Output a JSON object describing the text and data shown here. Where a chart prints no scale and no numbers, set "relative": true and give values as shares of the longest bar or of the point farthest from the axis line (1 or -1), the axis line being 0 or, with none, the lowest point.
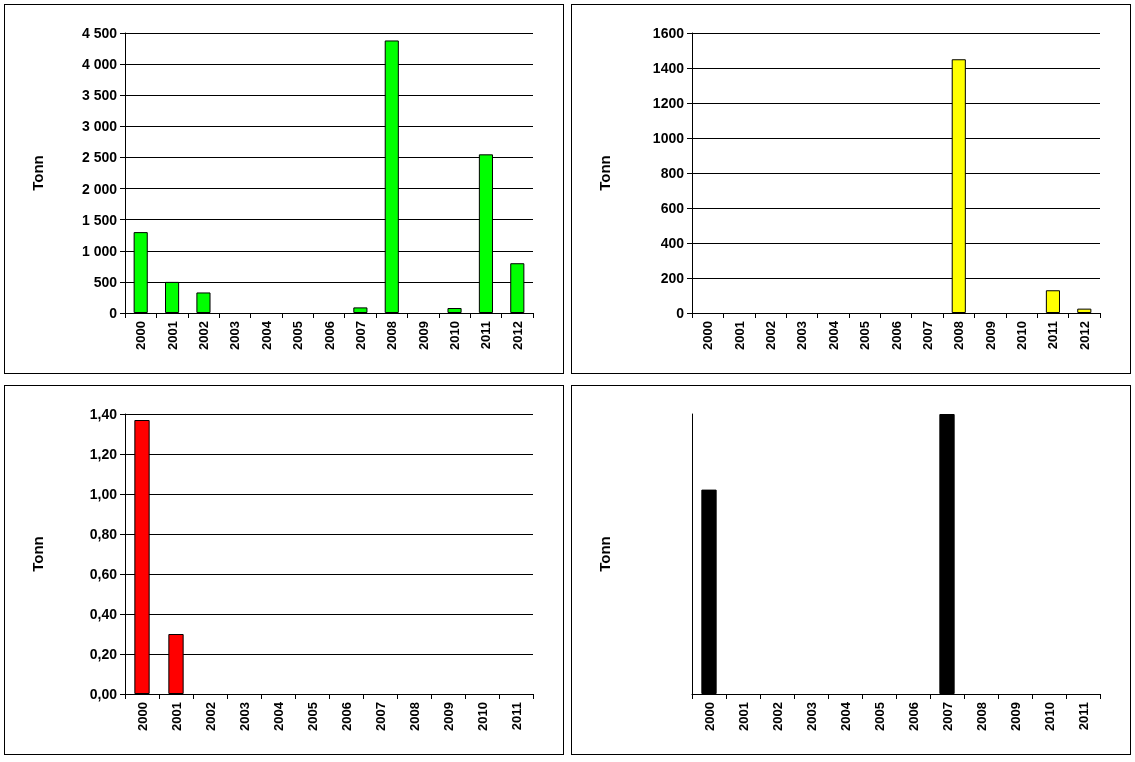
{
  "chart_data": [
    {
      "type": "bar",
      "ylabel": "Tonn",
      "categories": [
        "2000",
        "2001",
        "2002",
        "2003",
        "2004",
        "2005",
        "2006",
        "2007",
        "2008",
        "2009",
        "2010",
        "2011",
        "2012"
      ],
      "values": [
        1300,
        500,
        330,
        0,
        0,
        0,
        0,
        90,
        4380,
        0,
        80,
        2550,
        800
      ],
      "color": "#00ff00",
      "ylim": [
        0,
        4500
      ],
      "yticks": [
        {
          "value": 0,
          "label": "0"
        },
        {
          "value": 500,
          "label": "500"
        },
        {
          "value": 1000,
          "label": "1 000"
        },
        {
          "value": 1500,
          "label": "1 500"
        },
        {
          "value": 2000,
          "label": "2 000"
        },
        {
          "value": 2500,
          "label": "2 500"
        },
        {
          "value": 3000,
          "label": "3 000"
        },
        {
          "value": 3500,
          "label": "3 500"
        },
        {
          "value": 4000,
          "label": "4 000"
        },
        {
          "value": 4500,
          "label": "4 500"
        }
      ],
      "grid": "y"
    },
    {
      "type": "bar",
      "ylabel": "Tonn",
      "categories": [
        "2000",
        "2001",
        "2002",
        "2003",
        "2004",
        "2005",
        "2006",
        "2007",
        "2008",
        "2009",
        "2010",
        "2011",
        "2012"
      ],
      "values": [
        0,
        0,
        0,
        0,
        0,
        0,
        0,
        0,
        1450,
        0,
        0,
        130,
        25
      ],
      "color": "#ffff00",
      "ylim": [
        0,
        1600
      ],
      "yticks": [
        0,
        200,
        400,
        600,
        800,
        1000,
        1200,
        1400,
        1600
      ],
      "grid": "y"
    },
    {
      "type": "bar",
      "ylabel": "Tonn",
      "categories": [
        "2000",
        "2001",
        "2002",
        "2003",
        "2004",
        "2005",
        "2006",
        "2007",
        "2008",
        "2009",
        "2010",
        "2011"
      ],
      "values": [
        1.37,
        0.3,
        0,
        0,
        0,
        0,
        0,
        0,
        0,
        0,
        0,
        0
      ],
      "color": "#ff0000",
      "ylim": [
        0,
        1.4
      ],
      "yticks": [
        {
          "value": 0,
          "label": "0,00"
        },
        {
          "value": 0.2,
          "label": "0,20"
        },
        {
          "value": 0.4,
          "label": "0,40"
        },
        {
          "value": 0.6,
          "label": "0,60"
        },
        {
          "value": 0.8,
          "label": "0,80"
        },
        {
          "value": 1,
          "label": "1,00"
        },
        {
          "value": 1.2,
          "label": "1,20"
        },
        {
          "value": 1.4,
          "label": "1,40"
        }
      ],
      "grid": "y"
    },
    {
      "type": "bar",
      "ylabel": "Tonn",
      "relative": true,
      "categories": [
        "2000",
        "2001",
        "2002",
        "2003",
        "2004",
        "2005",
        "2006",
        "2007",
        "2008",
        "2009",
        "2010",
        "2011"
      ],
      "values": [
        0.73,
        0,
        0,
        0,
        0,
        0,
        0,
        1,
        0,
        0,
        0,
        0
      ],
      "color": "#000000",
      "grid": "y"
    }
  ]
}
